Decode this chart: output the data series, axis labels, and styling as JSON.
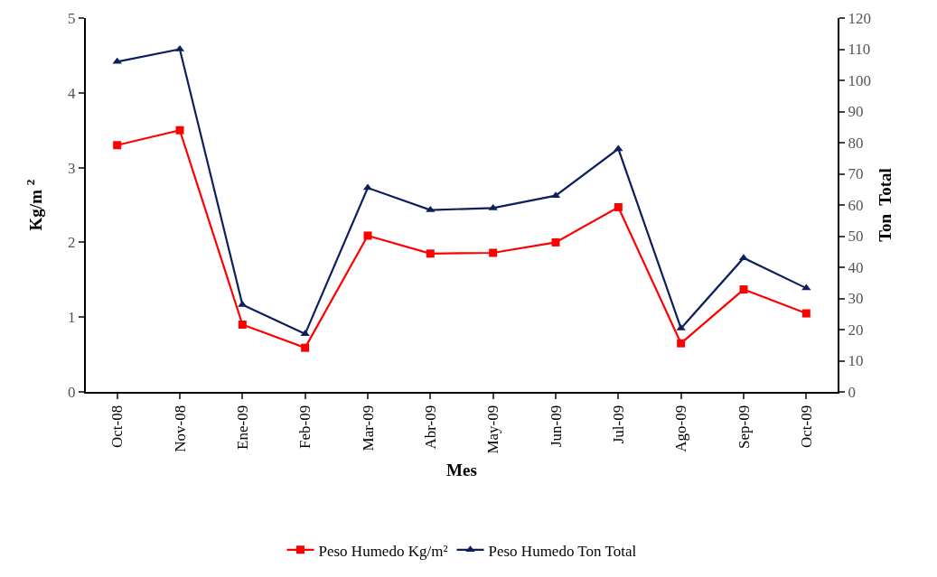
{
  "chart_data": {
    "type": "line",
    "xlabel": "Mes",
    "ylabel": "Kg/m $^{2}$",
    "y2label": "Ton  Total",
    "categories": [
      "Oct-08",
      "Nov-08",
      "Ene-09",
      "Feb-09",
      "Mar-09",
      "Abr-09",
      "May-09",
      "Jun-09",
      "Jul-09",
      "Ago-09",
      "Sep-09",
      "Oct-09"
    ],
    "series": [
      {
        "name": "Peso Humedo Kg/m²",
        "color": "#ff0000",
        "marker": "square",
        "values": [
          3.3,
          3.5,
          0.9,
          0.59,
          2.09,
          1.85,
          1.86,
          2.0,
          2.47,
          0.65,
          1.37,
          1.05
        ]
      },
      {
        "name": "Peso Humedo Ton Total",
        "color": "#0d1f5c",
        "marker": "triangle",
        "axis": "y2",
        "values": [
          106,
          110,
          28,
          18.6,
          65.5,
          58.4,
          59,
          63,
          78,
          20.4,
          43,
          33.3
        ]
      }
    ],
    "ylim": [
      0,
      5
    ],
    "yticks": [
      0,
      1,
      2,
      3,
      4,
      5
    ],
    "y2lim": [
      0,
      120
    ],
    "y2ticks": [
      0,
      10,
      20,
      30,
      40,
      50,
      60,
      70,
      80,
      90,
      100,
      110,
      120
    ],
    "grid": false,
    "legend": "bottom",
    "line_style": "solid"
  }
}
